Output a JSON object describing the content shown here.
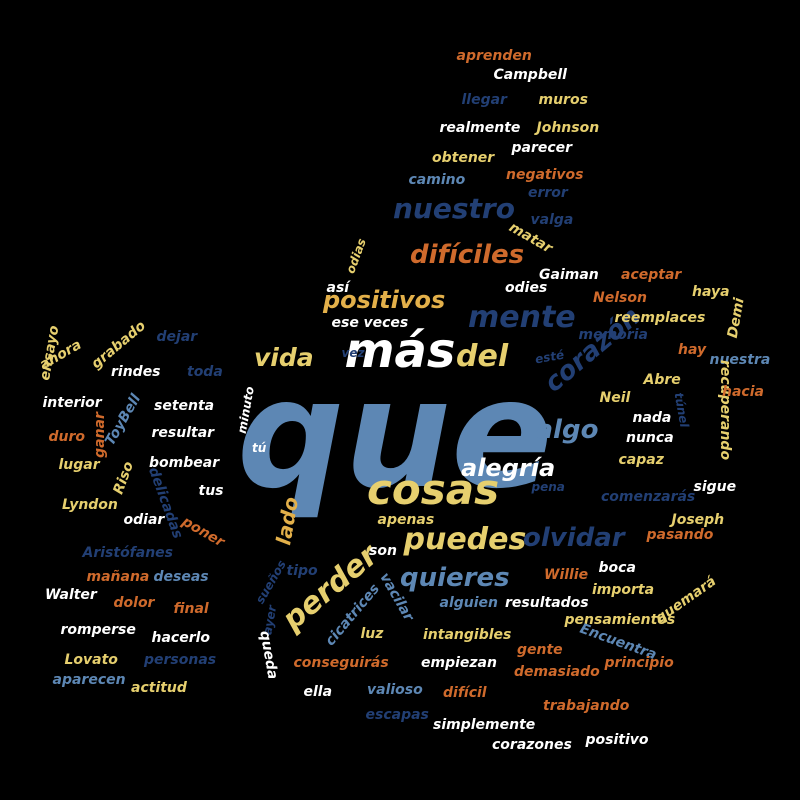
{
  "palette": {
    "white": "#ffffff",
    "yellow": "#e6cf6e",
    "orange": "#cf6a2c",
    "navy": "#223f74",
    "steel": "#5d87b4",
    "gold": "#e3b04a"
  },
  "words": [
    {
      "text": "que",
      "color": "#5d87b4"
    },
    {
      "text": "más",
      "color": "#ffffff"
    },
    {
      "text": "del",
      "color": "#e6cf6e"
    },
    {
      "text": "cosas",
      "color": "#e6cf6e"
    },
    {
      "text": "mente",
      "color": "#223f74"
    },
    {
      "text": "nuestro",
      "color": "#223f74"
    },
    {
      "text": "difíciles",
      "color": "#cf6a2c"
    },
    {
      "text": "positivos",
      "color": "#e3b04a"
    },
    {
      "text": "vida",
      "color": "#e6cf6e"
    },
    {
      "text": "corazón",
      "color": "#223f74"
    },
    {
      "text": "algo",
      "color": "#5d87b4"
    },
    {
      "text": "alegría",
      "color": "#ffffff"
    },
    {
      "text": "puedes",
      "color": "#e6cf6e"
    },
    {
      "text": "olvidar",
      "color": "#223f74"
    },
    {
      "text": "quieres",
      "color": "#5d87b4"
    },
    {
      "text": "perder",
      "color": "#e6cf6e"
    },
    {
      "text": "lado",
      "color": "#e3b04a"
    },
    {
      "text": "aprenden",
      "color": "#cf6a2c"
    },
    {
      "text": "Campbell",
      "color": "#ffffff"
    },
    {
      "text": "llegar",
      "color": "#223f74"
    },
    {
      "text": "muros",
      "color": "#e6cf6e"
    },
    {
      "text": "realmente",
      "color": "#ffffff"
    },
    {
      "text": "Johnson",
      "color": "#e6cf6e"
    },
    {
      "text": "obtener",
      "color": "#e6cf6e"
    },
    {
      "text": "parecer",
      "color": "#ffffff"
    },
    {
      "text": "negativos",
      "color": "#cf6a2c"
    },
    {
      "text": "camino",
      "color": "#5d87b4"
    },
    {
      "text": "error",
      "color": "#223f74"
    },
    {
      "text": "valga",
      "color": "#223f74"
    },
    {
      "text": "matar",
      "color": "#e6cf6e"
    },
    {
      "text": "odias",
      "color": "#e6cf6e"
    },
    {
      "text": "así",
      "color": "#ffffff"
    },
    {
      "text": "Gaiman",
      "color": "#ffffff"
    },
    {
      "text": "aceptar",
      "color": "#cf6a2c"
    },
    {
      "text": "haya",
      "color": "#e6cf6e"
    },
    {
      "text": "odies",
      "color": "#ffffff"
    },
    {
      "text": "Nelson",
      "color": "#cf6a2c"
    },
    {
      "text": "ese",
      "color": "#ffffff"
    },
    {
      "text": "veces",
      "color": "#ffffff"
    },
    {
      "text": "reemplaces",
      "color": "#e6cf6e"
    },
    {
      "text": "Demi",
      "color": "#e6cf6e"
    },
    {
      "text": "memoria",
      "color": "#223f74"
    },
    {
      "text": "vez",
      "color": "#223f74"
    },
    {
      "text": "esté",
      "color": "#223f74"
    },
    {
      "text": "hay",
      "color": "#cf6a2c"
    },
    {
      "text": "nuestra",
      "color": "#5d87b4"
    },
    {
      "text": "Abre",
      "color": "#e6cf6e"
    },
    {
      "text": "recuperando",
      "color": "#e6cf6e"
    },
    {
      "text": "hacia",
      "color": "#cf6a2c"
    },
    {
      "text": "Neil",
      "color": "#e6cf6e"
    },
    {
      "text": "túnel",
      "color": "#223f74"
    },
    {
      "text": "nada",
      "color": "#ffffff"
    },
    {
      "text": "nunca",
      "color": "#ffffff"
    },
    {
      "text": "capaz",
      "color": "#e6cf6e"
    },
    {
      "text": "sigue",
      "color": "#ffffff"
    },
    {
      "text": "pena",
      "color": "#223f74"
    },
    {
      "text": "comenzarás",
      "color": "#223f74"
    },
    {
      "text": "pasando",
      "color": "#cf6a2c"
    },
    {
      "text": "Joseph",
      "color": "#e6cf6e"
    },
    {
      "text": "ahora",
      "color": "#e6cf6e"
    },
    {
      "text": "grabado",
      "color": "#e6cf6e"
    },
    {
      "text": "ensayo",
      "color": "#e6cf6e"
    },
    {
      "text": "dejar",
      "color": "#223f74"
    },
    {
      "text": "rindes",
      "color": "#ffffff"
    },
    {
      "text": "toda",
      "color": "#223f74"
    },
    {
      "text": "interior",
      "color": "#ffffff"
    },
    {
      "text": "ToyBell",
      "color": "#5d87b4"
    },
    {
      "text": "setenta",
      "color": "#ffffff"
    },
    {
      "text": "minuto",
      "color": "#ffffff"
    },
    {
      "text": "duro",
      "color": "#cf6a2c"
    },
    {
      "text": "ganar",
      "color": "#cf6a2c"
    },
    {
      "text": "resultar",
      "color": "#ffffff"
    },
    {
      "text": "lugar",
      "color": "#e6cf6e"
    },
    {
      "text": "Riso",
      "color": "#e6cf6e"
    },
    {
      "text": "bombear",
      "color": "#ffffff"
    },
    {
      "text": "tú",
      "color": "#ffffff"
    },
    {
      "text": "tus",
      "color": "#ffffff"
    },
    {
      "text": "delicadas",
      "color": "#223f74"
    },
    {
      "text": "Lyndon",
      "color": "#e6cf6e"
    },
    {
      "text": "odiar",
      "color": "#ffffff"
    },
    {
      "text": "poner",
      "color": "#cf6a2c"
    },
    {
      "text": "apenas",
      "color": "#e6cf6e"
    },
    {
      "text": "Aristófanes",
      "color": "#223f74"
    },
    {
      "text": "mañana",
      "color": "#cf6a2c"
    },
    {
      "text": "deseas",
      "color": "#5d87b4"
    },
    {
      "text": "Walter",
      "color": "#ffffff"
    },
    {
      "text": "dolor",
      "color": "#cf6a2c"
    },
    {
      "text": "final",
      "color": "#cf6a2c"
    },
    {
      "text": "romperse",
      "color": "#ffffff"
    },
    {
      "text": "hacerlo",
      "color": "#ffffff"
    },
    {
      "text": "Lovato",
      "color": "#e6cf6e"
    },
    {
      "text": "personas",
      "color": "#223f74"
    },
    {
      "text": "aparecen",
      "color": "#5d87b4"
    },
    {
      "text": "actitud",
      "color": "#e6cf6e"
    },
    {
      "text": "sueños",
      "color": "#223f74"
    },
    {
      "text": "tipo",
      "color": "#223f74"
    },
    {
      "text": "ayer",
      "color": "#223f74"
    },
    {
      "text": "queda",
      "color": "#ffffff"
    },
    {
      "text": "cicatrices",
      "color": "#5d87b4"
    },
    {
      "text": "son",
      "color": "#ffffff"
    },
    {
      "text": "vacilar",
      "color": "#5d87b4"
    },
    {
      "text": "luz",
      "color": "#e6cf6e"
    },
    {
      "text": "Willie",
      "color": "#cf6a2c"
    },
    {
      "text": "boca",
      "color": "#ffffff"
    },
    {
      "text": "importa",
      "color": "#e6cf6e"
    },
    {
      "text": "quemará",
      "color": "#e6cf6e"
    },
    {
      "text": "alguien",
      "color": "#5d87b4"
    },
    {
      "text": "resultados",
      "color": "#ffffff"
    },
    {
      "text": "pensamientos",
      "color": "#e6cf6e"
    },
    {
      "text": "intangibles",
      "color": "#e6cf6e"
    },
    {
      "text": "Encuentra",
      "color": "#5d87b4"
    },
    {
      "text": "conseguirás",
      "color": "#cf6a2c"
    },
    {
      "text": "empiezan",
      "color": "#ffffff"
    },
    {
      "text": "gente",
      "color": "#cf6a2c"
    },
    {
      "text": "principio",
      "color": "#cf6a2c"
    },
    {
      "text": "ella",
      "color": "#ffffff"
    },
    {
      "text": "valioso",
      "color": "#5d87b4"
    },
    {
      "text": "difícil",
      "color": "#cf6a2c"
    },
    {
      "text": "demasiado",
      "color": "#cf6a2c"
    },
    {
      "text": "trabajando",
      "color": "#cf6a2c"
    },
    {
      "text": "escapas",
      "color": "#223f74"
    },
    {
      "text": "simplemente",
      "color": "#ffffff"
    },
    {
      "text": "corazones",
      "color": "#ffffff"
    },
    {
      "text": "positivo",
      "color": "#ffffff"
    }
  ]
}
